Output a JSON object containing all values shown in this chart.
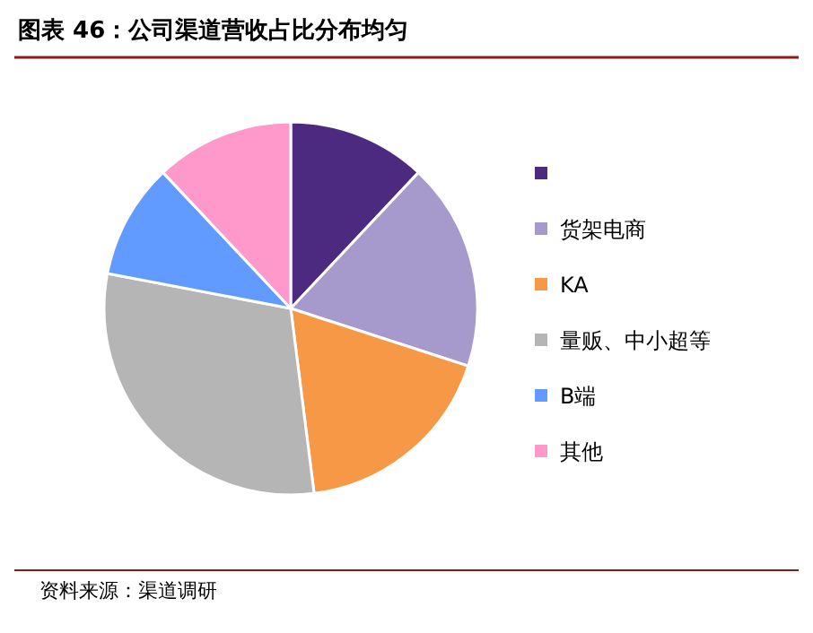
{
  "chart_data": {
    "type": "pie",
    "title": "图表 46：公司渠道营收占比分布均匀",
    "categories": [
      null,
      "货架电商",
      "KA",
      "量贩、中小超等",
      "B端",
      "其他"
    ],
    "values": [
      12,
      18,
      18,
      30,
      10,
      12
    ],
    "colors": [
      "#4b2a7f",
      "#a699cc",
      "#f79847",
      "#b5b5b5",
      "#619bff",
      "#ff99cc"
    ],
    "legend": "right",
    "annotations": [
      "资料来源：渠道调研"
    ]
  }
}
